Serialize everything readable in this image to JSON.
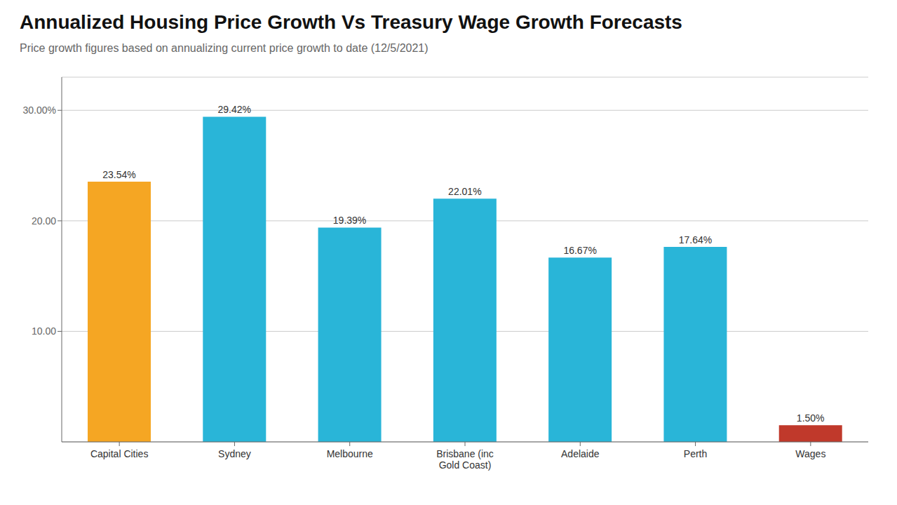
{
  "chart_data": {
    "type": "bar",
    "title": "Annualized Housing Price Growth Vs Treasury Wage Growth Forecasts",
    "subtitle": "Price growth figures based on annualizing current price growth to date (12/5/2021)",
    "categories": [
      "Capital Cities",
      "Sydney",
      "Melbourne",
      "Brisbane (inc\nGold Coast)",
      "Adelaide",
      "Perth",
      "Wages"
    ],
    "values": [
      23.54,
      29.42,
      19.39,
      22.01,
      16.67,
      17.64,
      1.5
    ],
    "value_labels": [
      "23.54%",
      "29.42%",
      "19.39%",
      "22.01%",
      "16.67%",
      "17.64%",
      "1.50%"
    ],
    "colors": [
      "#F5A623",
      "#29B5D8",
      "#29B5D8",
      "#29B5D8",
      "#29B5D8",
      "#29B5D8",
      "#C0392B"
    ],
    "ylim": [
      0,
      33
    ],
    "yticks": [
      {
        "value": 10,
        "label": "10.00"
      },
      {
        "value": 20,
        "label": "20.00"
      },
      {
        "value": 30,
        "label": "30.00%"
      }
    ],
    "grid": true,
    "data_labels": true
  }
}
